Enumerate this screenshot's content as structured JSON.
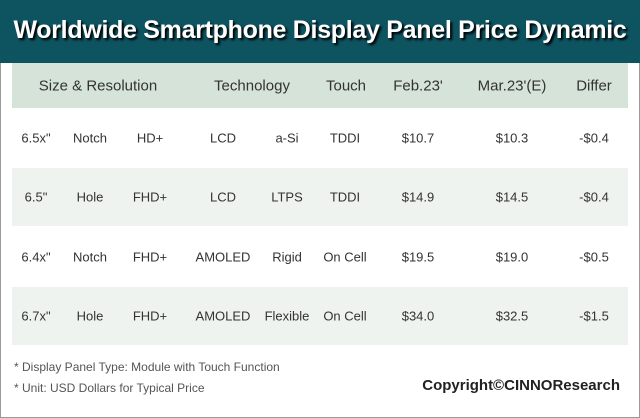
{
  "title": "Worldwide Smartphone Display Panel Price Dynamic",
  "chart_data": {
    "type": "table",
    "title": "Worldwide Smartphone Display Panel Price Dynamic",
    "headers": [
      "Size & Resolution",
      "Technology",
      "Touch",
      "Feb.23'",
      "Mar.23'(E)",
      "Differ"
    ],
    "rows": [
      [
        "6.5x\"",
        "Notch",
        "HD+",
        "LCD",
        "a-Si",
        "TDDI",
        "$10.7",
        "$10.3",
        "-$0.4"
      ],
      [
        "6.5\"",
        "Hole",
        "FHD+",
        "LCD",
        "LTPS",
        "TDDI",
        "$14.9",
        "$14.5",
        "-$0.4"
      ],
      [
        "6.4x\"",
        "Notch",
        "FHD+",
        "AMOLED",
        "Rigid",
        "On Cell",
        "$19.5",
        "$19.0",
        "-$0.5"
      ],
      [
        "6.7x\"",
        "Hole",
        "FHD+",
        "AMOLED",
        "Flexible",
        "On Cell",
        "$34.0",
        "$32.5",
        "-$1.5"
      ]
    ]
  },
  "notes": [
    "* Display Panel Type:  Module with Touch Function",
    "* Unit:  USD Dollars for Typical Price"
  ],
  "copyright": "Copyright©CINNOResearch",
  "colors": {
    "title_bg": "#0e5360",
    "header_bg": "#d5e3d9",
    "alt_row_bg": "#eef3ef"
  }
}
